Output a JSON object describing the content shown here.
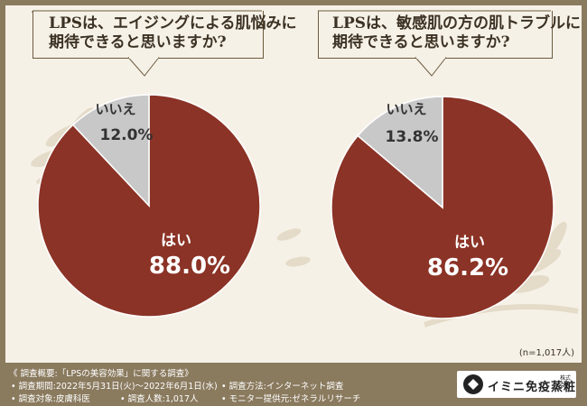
{
  "questions": [
    {
      "line1": "LPSは、エイジングによる肌悩みに",
      "line2": "期待できると思いますか?"
    },
    {
      "line1": "LPSは、敏感肌の方の肌トラブルに",
      "line2": "期待できると思いますか?"
    }
  ],
  "chart_data": [
    {
      "type": "pie",
      "title": "LPSは、エイジングによる肌悩みに期待できると思いますか?",
      "slices": [
        {
          "label": "はい",
          "value": 88.0,
          "display": "88.0%",
          "color": "#8b3326"
        },
        {
          "label": "いいえ",
          "value": 12.0,
          "display": "12.0%",
          "color": "#c8c8c8"
        }
      ]
    },
    {
      "type": "pie",
      "title": "LPSは、敏感肌の方の肌トラブルに期待できると思いますか?",
      "slices": [
        {
          "label": "はい",
          "value": 86.2,
          "display": "86.2%",
          "color": "#8b3326"
        },
        {
          "label": "いいえ",
          "value": 13.8,
          "display": "13.8%",
          "color": "#c8c8c8"
        }
      ]
    }
  ],
  "sample_note": "(n=1,017人)",
  "footer": {
    "title": "《 調査概要:「LPSの美容効果」に関する調査》",
    "period": "• 調査期間:2022年5月31日(火)〜2022年6月1日(水)",
    "method": "• 調査方法:インターネット調査",
    "target": "• 調査対象:皮膚科医",
    "count": "• 調査人数:1,017人",
    "provider": "• モニター提供元:ゼネラルリサーチ"
  },
  "logo": {
    "name": "イミニ免疫蒸粧",
    "sub1": "株式",
    "sub2": "会社"
  }
}
